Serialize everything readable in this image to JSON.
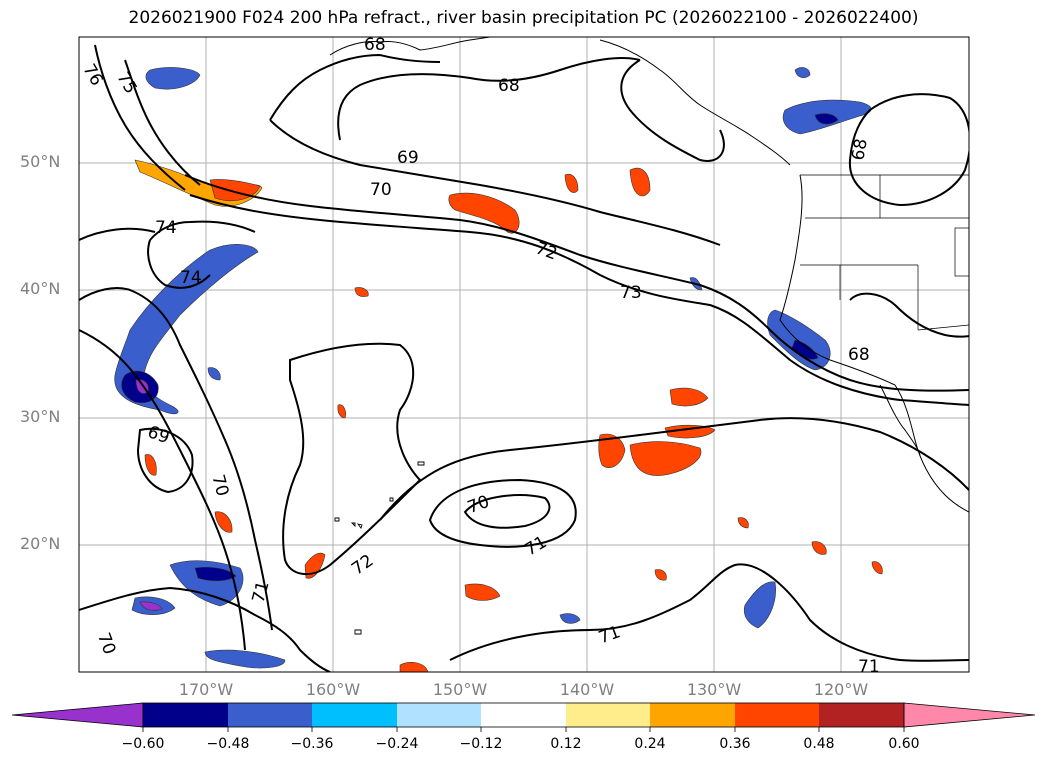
{
  "title": "2026021900 F024 200 hPa refract., river basin precipitation PC (2026022100 - 2026022400)",
  "map": {
    "lat_labels": [
      "50°N",
      "40°N",
      "30°N",
      "20°N"
    ],
    "lon_labels": [
      "170°W",
      "160°W",
      "150°W",
      "140°W",
      "130°W",
      "120°W"
    ],
    "contour_labels": [
      "76",
      "75",
      "68",
      "68",
      "69",
      "70",
      "74",
      "72",
      "74",
      "73",
      "68",
      "68",
      "69",
      "70",
      "72",
      "70",
      "71",
      "71",
      "71",
      "70",
      "71"
    ],
    "colors": {
      "contour": "#000000",
      "grid": "#b0b0b0",
      "neg_strong": "#00008b",
      "neg_mid": "#3a5fcd",
      "neg_light": "#00bfff",
      "neg_faint": "#b0e2ff",
      "pos_faint": "#ffec8b",
      "pos_light": "#ffa500",
      "pos_mid": "#ff4500",
      "pos_strong": "#b22222",
      "deep_neg": "#9932cc"
    }
  },
  "colorbar": {
    "ticks": [
      "−0.60",
      "−0.48",
      "−0.36",
      "−0.24",
      "−0.12",
      "0.12",
      "0.24",
      "0.36",
      "0.48",
      "0.60"
    ],
    "colors": [
      "#9932cc",
      "#00008b",
      "#3a5fcd",
      "#00bfff",
      "#b0e2ff",
      "#ffffff",
      "#ffec8b",
      "#ffa500",
      "#ff4500",
      "#b22222",
      "#ff88aa",
      "#ff88aa"
    ]
  }
}
